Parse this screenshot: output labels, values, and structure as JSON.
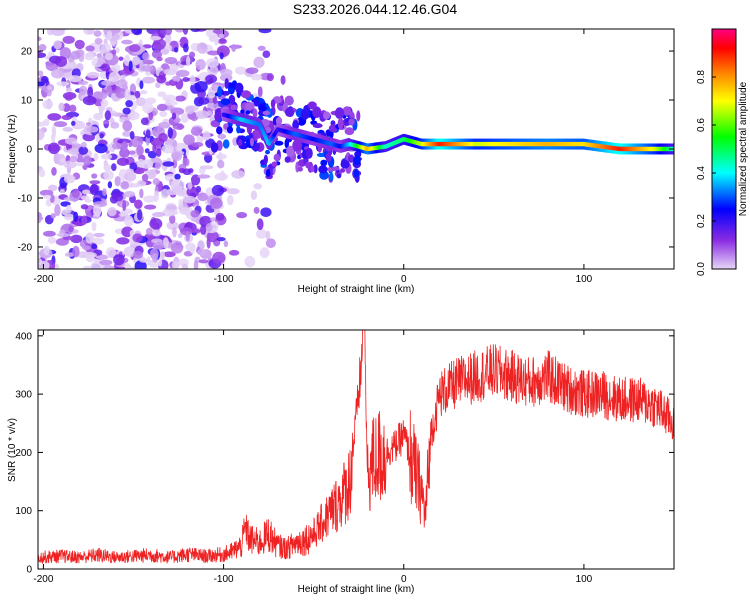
{
  "title": "S233.2026.044.12.46.G04",
  "chart_data": [
    {
      "type": "heatmap",
      "xlabel": "Height of straight line (km)",
      "ylabel": "Frequency (Hz)",
      "xlim": [
        -203,
        150
      ],
      "ylim": [
        -24.5,
        24.5
      ],
      "x_ticks": [
        -200,
        -100,
        0,
        100
      ],
      "y_ticks": [
        -20,
        -10,
        0,
        10,
        20
      ],
      "colorbar": {
        "label": "Normalized spectral amplitude",
        "range": [
          0,
          1
        ],
        "ticks": [
          "0.0",
          "0.2",
          "0.4",
          "0.6",
          "0.8"
        ],
        "colors": [
          "#e6d6f7",
          "#8a2be2",
          "#0000ff",
          "#00ffff",
          "#00ff00",
          "#ffff00",
          "#ff7f00",
          "#ff0000",
          "#ff0080"
        ]
      },
      "ridge": {
        "x": [
          -100,
          -90,
          -80,
          -75,
          -70,
          -60,
          -50,
          -40,
          -35,
          -30,
          -20,
          -10,
          0,
          10,
          20,
          40,
          60,
          80,
          100,
          120,
          140,
          150
        ],
        "y": [
          7,
          6,
          5,
          1,
          4,
          3,
          2,
          1,
          0.5,
          1,
          0,
          0.5,
          2,
          1,
          1,
          1,
          1,
          1,
          1,
          0,
          0,
          0
        ],
        "amplitude": [
          0.2,
          0.35,
          0.3,
          0.35,
          0.2,
          0.3,
          0.25,
          0.3,
          0.25,
          0.35,
          0.7,
          0.4,
          0.45,
          0.6,
          0.85,
          0.6,
          0.65,
          0.7,
          0.65,
          0.85,
          0.6,
          0.4
        ]
      }
    },
    {
      "type": "line",
      "xlabel": "Height of straight line (km)",
      "ylabel": "SNR (10 * v/v)",
      "xlim": [
        -203,
        150
      ],
      "ylim": [
        0,
        410
      ],
      "x_ticks": [
        -200,
        -100,
        0,
        100
      ],
      "y_ticks": [
        0,
        100,
        200,
        300,
        400
      ],
      "color": "#ee2222",
      "series": [
        {
          "name": "SNR",
          "x": [
            -203,
            -190,
            -180,
            -170,
            -160,
            -150,
            -140,
            -130,
            -120,
            -110,
            -100,
            -95,
            -90,
            -88,
            -85,
            -80,
            -75,
            -70,
            -65,
            -60,
            -55,
            -50,
            -45,
            -40,
            -35,
            -30,
            -25,
            -22,
            -20,
            -18,
            -15,
            -10,
            -5,
            0,
            5,
            10,
            12,
            15,
            20,
            25,
            30,
            40,
            50,
            60,
            70,
            80,
            90,
            100,
            110,
            120,
            130,
            140,
            150
          ],
          "y": [
            20,
            22,
            20,
            24,
            20,
            22,
            24,
            20,
            25,
            22,
            25,
            30,
            40,
            70,
            50,
            45,
            60,
            40,
            35,
            45,
            50,
            60,
            80,
            100,
            120,
            150,
            300,
            410,
            150,
            180,
            190,
            200,
            210,
            230,
            180,
            130,
            90,
            230,
            300,
            310,
            320,
            330,
            340,
            330,
            320,
            330,
            310,
            300,
            300,
            290,
            290,
            280,
            250
          ]
        }
      ]
    }
  ]
}
